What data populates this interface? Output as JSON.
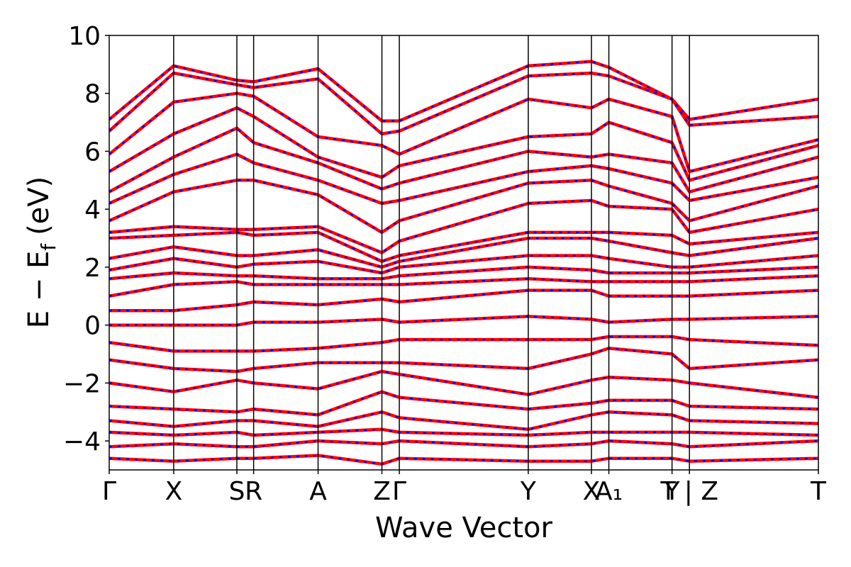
{
  "chart_data": {
    "type": "line",
    "title": "",
    "xlabel": "Wave Vector",
    "ylabel": "E − E",
    "ylabel_subscript": "f",
    "ylabel_unit": "(eV)",
    "ylim": [
      -5,
      10
    ],
    "yticks": [
      -4,
      -2,
      0,
      2,
      4,
      6,
      8,
      10
    ],
    "ytick_labels": [
      "−4",
      "−2",
      "0",
      "2",
      "4",
      "6",
      "8",
      "10"
    ],
    "grid": false,
    "legend": "none",
    "colors": {
      "series_a": "#ff0000",
      "series_b": "#0000ff",
      "frame": "#000000"
    },
    "kpath": {
      "x_range": [
        0,
        11.0
      ],
      "ticks": [
        {
          "x": 0.0,
          "label": "Γ"
        },
        {
          "x": 1.0,
          "label": "X"
        },
        {
          "x": 1.98,
          "label": "S"
        },
        {
          "x": 2.24,
          "label": "R"
        },
        {
          "x": 3.24,
          "label": "A"
        },
        {
          "x": 4.23,
          "label": "Z"
        },
        {
          "x": 4.5,
          "label": "Γ"
        },
        {
          "x": 6.5,
          "label": "Y"
        },
        {
          "x": 7.48,
          "label": "X"
        },
        {
          "x": 7.75,
          "label": "A₁"
        },
        {
          "x": 8.73,
          "label": "Y"
        },
        {
          "x": 9.0,
          "label": "T | Z"
        },
        {
          "x": 11.0,
          "label": "T"
        }
      ]
    },
    "series": [
      {
        "x": [
          0,
          1.0,
          1.98,
          2.24,
          3.24,
          4.23,
          4.5,
          6.5,
          7.48,
          7.75,
          8.73,
          9.0,
          11.0
        ],
        "values": [
          7.1,
          8.95,
          8.45,
          8.4,
          8.85,
          7.05,
          7.05,
          8.95,
          9.1,
          8.9,
          7.8,
          7.1,
          7.8
        ]
      },
      {
        "x": [
          0,
          1.0,
          1.98,
          2.24,
          3.24,
          4.23,
          4.5,
          6.5,
          7.48,
          7.75,
          8.73,
          9.0,
          11.0
        ],
        "values": [
          6.7,
          8.7,
          8.3,
          8.2,
          8.5,
          6.6,
          6.7,
          8.6,
          8.7,
          8.6,
          7.8,
          6.9,
          7.2
        ]
      },
      {
        "x": [
          0,
          1.0,
          1.98,
          2.24,
          3.24,
          4.23,
          4.5,
          6.5,
          7.48,
          7.75,
          8.73,
          9.0,
          11.0
        ],
        "values": [
          5.9,
          7.7,
          8.0,
          7.9,
          6.5,
          6.2,
          5.9,
          7.8,
          7.5,
          7.8,
          7.2,
          5.3,
          6.4
        ]
      },
      {
        "x": [
          0,
          1.0,
          1.98,
          2.24,
          3.24,
          4.23,
          4.5,
          6.5,
          7.48,
          7.75,
          8.73,
          9.0,
          11.0
        ],
        "values": [
          5.3,
          6.6,
          7.5,
          7.2,
          5.8,
          5.1,
          5.5,
          6.5,
          6.6,
          7.0,
          6.3,
          5.0,
          6.2
        ]
      },
      {
        "x": [
          0,
          1.0,
          1.98,
          2.24,
          3.24,
          4.23,
          4.5,
          6.5,
          7.48,
          7.75,
          8.73,
          9.0,
          11.0
        ],
        "values": [
          4.6,
          5.8,
          6.8,
          6.3,
          5.6,
          4.7,
          4.9,
          6.0,
          5.8,
          5.9,
          5.6,
          4.6,
          5.8
        ]
      },
      {
        "x": [
          0,
          1.0,
          1.98,
          2.24,
          3.24,
          4.23,
          4.5,
          6.5,
          7.48,
          7.75,
          8.73,
          9.0,
          11.0
        ],
        "values": [
          4.2,
          5.2,
          5.9,
          5.6,
          5.0,
          4.2,
          4.3,
          5.3,
          5.5,
          5.4,
          4.9,
          4.3,
          5.1
        ]
      },
      {
        "x": [
          0,
          1.0,
          1.98,
          2.24,
          3.24,
          4.23,
          4.5,
          6.5,
          7.48,
          7.75,
          8.73,
          9.0,
          11.0
        ],
        "values": [
          3.6,
          4.6,
          5.0,
          5.0,
          4.5,
          3.2,
          3.6,
          4.9,
          5.0,
          4.8,
          4.2,
          3.6,
          4.8
        ]
      },
      {
        "x": [
          0,
          1.0,
          1.98,
          2.24,
          3.24,
          4.23,
          4.5,
          6.5,
          7.48,
          7.75,
          8.73,
          9.0,
          11.0
        ],
        "values": [
          3.2,
          3.4,
          3.3,
          3.3,
          3.4,
          2.5,
          2.9,
          4.2,
          4.3,
          4.1,
          4.0,
          3.2,
          4.0
        ]
      },
      {
        "x": [
          0,
          1.0,
          1.98,
          2.24,
          3.24,
          4.23,
          4.5,
          6.5,
          7.48,
          7.75,
          8.73,
          9.0,
          11.0
        ],
        "values": [
          3.0,
          3.1,
          3.2,
          3.1,
          3.2,
          2.2,
          2.4,
          3.2,
          3.2,
          3.2,
          3.1,
          2.8,
          3.2
        ]
      },
      {
        "x": [
          0,
          1.0,
          1.98,
          2.24,
          3.24,
          4.23,
          4.5,
          6.5,
          7.48,
          7.75,
          8.73,
          9.0,
          11.0
        ],
        "values": [
          2.3,
          2.7,
          2.4,
          2.4,
          2.6,
          2.0,
          2.2,
          3.0,
          3.0,
          2.9,
          2.5,
          2.4,
          3.0
        ]
      },
      {
        "x": [
          0,
          1.0,
          1.98,
          2.24,
          3.24,
          4.23,
          4.5,
          6.5,
          7.48,
          7.75,
          8.73,
          9.0,
          11.0
        ],
        "values": [
          1.9,
          2.3,
          2.0,
          2.1,
          2.2,
          1.8,
          2.0,
          2.4,
          2.4,
          2.3,
          2.0,
          2.0,
          2.4
        ]
      },
      {
        "x": [
          0,
          1.0,
          1.98,
          2.24,
          3.24,
          4.23,
          4.5,
          6.5,
          7.48,
          7.75,
          8.73,
          9.0,
          11.0
        ],
        "values": [
          1.6,
          1.8,
          1.7,
          1.7,
          1.6,
          1.6,
          1.7,
          2.0,
          1.9,
          1.8,
          1.8,
          1.8,
          2.0
        ]
      },
      {
        "x": [
          0,
          1.0,
          1.98,
          2.24,
          3.24,
          4.23,
          4.5,
          6.5,
          7.48,
          7.75,
          8.73,
          9.0,
          11.0
        ],
        "values": [
          1.0,
          1.4,
          1.5,
          1.4,
          1.4,
          1.4,
          1.4,
          1.6,
          1.5,
          1.5,
          1.5,
          1.5,
          1.7
        ]
      },
      {
        "x": [
          0,
          1.0,
          1.98,
          2.24,
          3.24,
          4.23,
          4.5,
          6.5,
          7.48,
          7.75,
          8.73,
          9.0,
          11.0
        ],
        "values": [
          0.5,
          0.5,
          0.7,
          0.8,
          0.7,
          0.9,
          0.8,
          1.2,
          1.2,
          1.0,
          1.0,
          1.0,
          1.2
        ]
      },
      {
        "x": [
          0,
          1.0,
          1.98,
          2.24,
          3.24,
          4.23,
          4.5,
          6.5,
          7.48,
          7.75,
          8.73,
          9.0,
          11.0
        ],
        "values": [
          0.0,
          0.0,
          0.0,
          0.1,
          0.1,
          0.2,
          0.1,
          0.3,
          0.2,
          0.1,
          0.2,
          0.2,
          0.3
        ]
      },
      {
        "x": [
          0,
          1.0,
          1.98,
          2.24,
          3.24,
          4.23,
          4.5,
          6.5,
          7.48,
          7.75,
          8.73,
          9.0,
          11.0
        ],
        "values": [
          -0.6,
          -0.9,
          -0.9,
          -0.9,
          -0.8,
          -0.6,
          -0.5,
          -0.5,
          -0.5,
          -0.4,
          -0.4,
          -0.5,
          -0.7
        ]
      },
      {
        "x": [
          0,
          1.0,
          1.98,
          2.24,
          3.24,
          4.23,
          4.5,
          6.5,
          7.48,
          7.75,
          8.73,
          9.0,
          11.0
        ],
        "values": [
          -1.2,
          -1.5,
          -1.6,
          -1.5,
          -1.3,
          -1.3,
          -1.3,
          -1.5,
          -1.0,
          -0.8,
          -1.0,
          -1.5,
          -1.2
        ]
      },
      {
        "x": [
          0,
          1.0,
          1.98,
          2.24,
          3.24,
          4.23,
          4.5,
          6.5,
          7.48,
          7.75,
          8.73,
          9.0,
          11.0
        ],
        "values": [
          -2.0,
          -2.3,
          -1.9,
          -2.0,
          -2.2,
          -1.6,
          -1.7,
          -2.4,
          -1.9,
          -1.8,
          -1.9,
          -2.0,
          -2.5
        ]
      },
      {
        "x": [
          0,
          1.0,
          1.98,
          2.24,
          3.24,
          4.23,
          4.5,
          6.5,
          7.48,
          7.75,
          8.73,
          9.0,
          11.0
        ],
        "values": [
          -2.8,
          -2.9,
          -3.0,
          -2.9,
          -3.1,
          -2.3,
          -2.5,
          -2.9,
          -2.7,
          -2.6,
          -2.6,
          -2.8,
          -2.9
        ]
      },
      {
        "x": [
          0,
          1.0,
          1.98,
          2.24,
          3.24,
          4.23,
          4.5,
          6.5,
          7.48,
          7.75,
          8.73,
          9.0,
          11.0
        ],
        "values": [
          -3.3,
          -3.5,
          -3.3,
          -3.3,
          -3.5,
          -3.0,
          -3.2,
          -3.6,
          -3.1,
          -3.0,
          -3.1,
          -3.3,
          -3.4
        ]
      },
      {
        "x": [
          0,
          1.0,
          1.98,
          2.24,
          3.24,
          4.23,
          4.5,
          6.5,
          7.48,
          7.75,
          8.73,
          9.0,
          11.0
        ],
        "values": [
          -3.7,
          -3.8,
          -3.7,
          -3.8,
          -3.7,
          -3.6,
          -3.7,
          -3.8,
          -3.7,
          -3.7,
          -3.7,
          -3.7,
          -3.8
        ]
      },
      {
        "x": [
          0,
          1.0,
          1.98,
          2.24,
          3.24,
          4.23,
          4.5,
          6.5,
          7.48,
          7.75,
          8.73,
          9.0,
          11.0
        ],
        "values": [
          -4.2,
          -4.1,
          -4.2,
          -4.2,
          -4.0,
          -4.1,
          -4.0,
          -4.2,
          -4.1,
          -4.0,
          -4.1,
          -4.2,
          -4.0
        ]
      },
      {
        "x": [
          0,
          1.0,
          1.98,
          2.24,
          3.24,
          4.23,
          4.5,
          6.5,
          7.48,
          7.75,
          8.73,
          9.0,
          11.0
        ],
        "values": [
          -4.6,
          -4.7,
          -4.6,
          -4.6,
          -4.5,
          -4.8,
          -4.6,
          -4.7,
          -4.7,
          -4.6,
          -4.6,
          -4.7,
          -4.6
        ]
      }
    ]
  }
}
